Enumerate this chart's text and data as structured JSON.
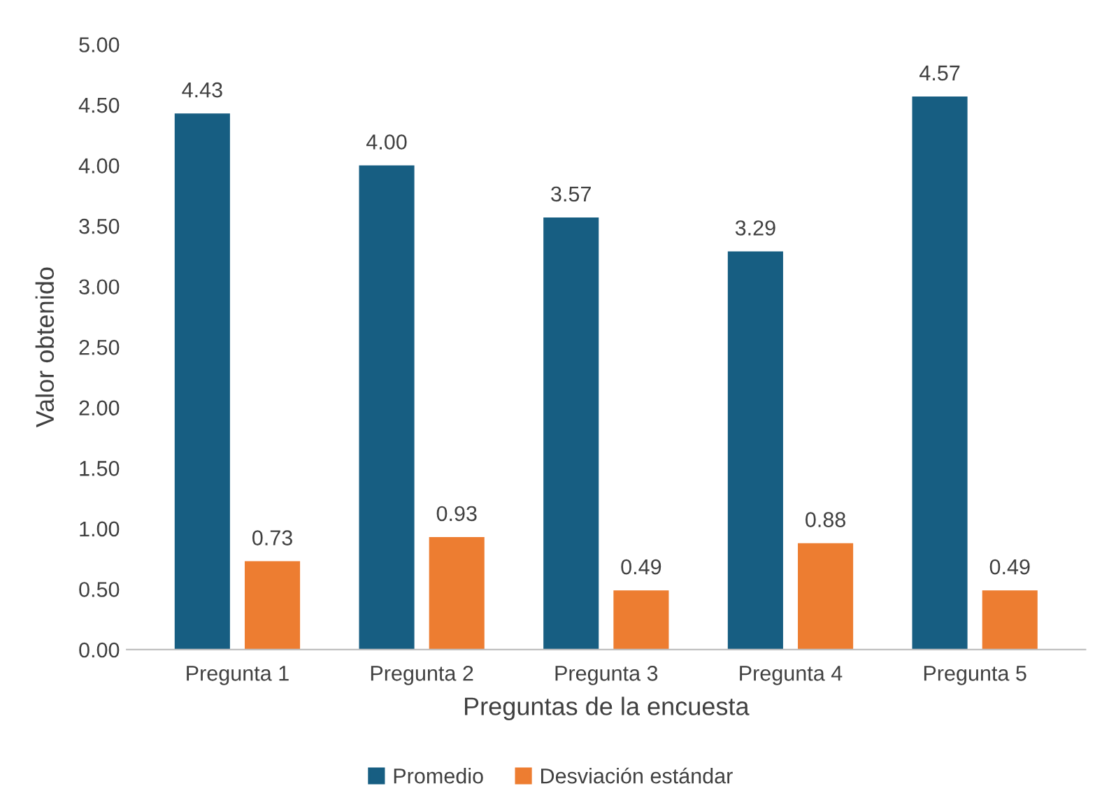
{
  "chart_data": {
    "type": "bar",
    "xlabel": "Preguntas de la encuesta",
    "ylabel": "Valor obtenido",
    "categories": [
      "Pregunta 1",
      "Pregunta 2",
      "Pregunta 3",
      "Pregunta 4",
      "Pregunta 5"
    ],
    "series": [
      {
        "name": "Promedio",
        "color": "#175e82",
        "values": [
          4.43,
          4.0,
          3.57,
          3.29,
          4.57
        ],
        "value_labels": [
          "4.43",
          "4.00",
          "3.57",
          "3.29",
          "4.57"
        ]
      },
      {
        "name": "Desviación estándar",
        "color": "#ed7d31",
        "values": [
          0.73,
          0.93,
          0.49,
          0.88,
          0.49
        ],
        "value_labels": [
          "0.73",
          "0.93",
          "0.49",
          "0.88",
          "0.49"
        ]
      }
    ],
    "ylim": [
      0,
      5
    ],
    "yticks": [
      {
        "value": 0,
        "label": "0.00"
      },
      {
        "value": 0.5,
        "label": "0.50"
      },
      {
        "value": 1,
        "label": "1.00"
      },
      {
        "value": 1.5,
        "label": "1.50"
      },
      {
        "value": 2,
        "label": "2.00"
      },
      {
        "value": 2.5,
        "label": "2.50"
      },
      {
        "value": 3,
        "label": "3.00"
      },
      {
        "value": 3.5,
        "label": "3.50"
      },
      {
        "value": 4,
        "label": "4.00"
      },
      {
        "value": 4.5,
        "label": "4.50"
      },
      {
        "value": 5,
        "label": "5.00"
      }
    ],
    "grid": false,
    "legend": "bottom"
  }
}
